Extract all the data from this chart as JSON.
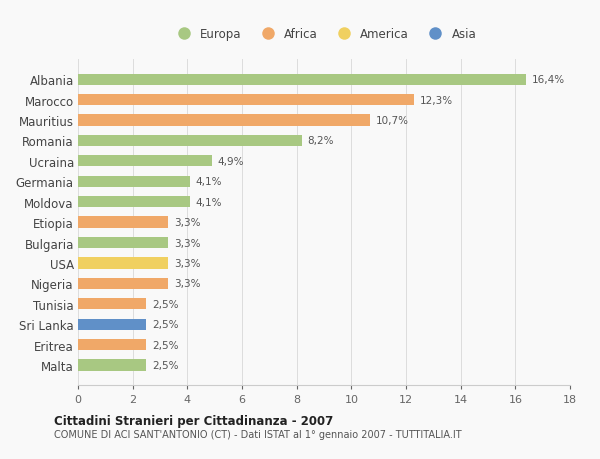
{
  "countries": [
    "Albania",
    "Marocco",
    "Mauritius",
    "Romania",
    "Ucraina",
    "Germania",
    "Moldova",
    "Etiopia",
    "Bulgaria",
    "USA",
    "Nigeria",
    "Tunisia",
    "Sri Lanka",
    "Eritrea",
    "Malta"
  ],
  "values": [
    16.4,
    12.3,
    10.7,
    8.2,
    4.9,
    4.1,
    4.1,
    3.3,
    3.3,
    3.3,
    3.3,
    2.5,
    2.5,
    2.5,
    2.5
  ],
  "labels": [
    "16,4%",
    "12,3%",
    "10,7%",
    "8,2%",
    "4,9%",
    "4,1%",
    "4,1%",
    "3,3%",
    "3,3%",
    "3,3%",
    "3,3%",
    "2,5%",
    "2,5%",
    "2,5%",
    "2,5%"
  ],
  "categories": [
    "Europa",
    "Africa",
    "Africa",
    "Europa",
    "Europa",
    "Europa",
    "Europa",
    "Africa",
    "Europa",
    "America",
    "Africa",
    "Africa",
    "Asia",
    "Africa",
    "Europa"
  ],
  "colors": {
    "Europa": "#a8c882",
    "Africa": "#f0a868",
    "America": "#f0d060",
    "Asia": "#6090c8"
  },
  "legend_order": [
    "Europa",
    "Africa",
    "America",
    "Asia"
  ],
  "xlim": [
    0,
    18
  ],
  "xticks": [
    0,
    2,
    4,
    6,
    8,
    10,
    12,
    14,
    16,
    18
  ],
  "title": "Cittadini Stranieri per Cittadinanza - 2007",
  "subtitle": "COMUNE DI ACI SANT'ANTONIO (CT) - Dati ISTAT al 1° gennaio 2007 - TUTTITALIA.IT",
  "background_color": "#f9f9f9",
  "bar_height": 0.55,
  "grid_color": "#dddddd"
}
